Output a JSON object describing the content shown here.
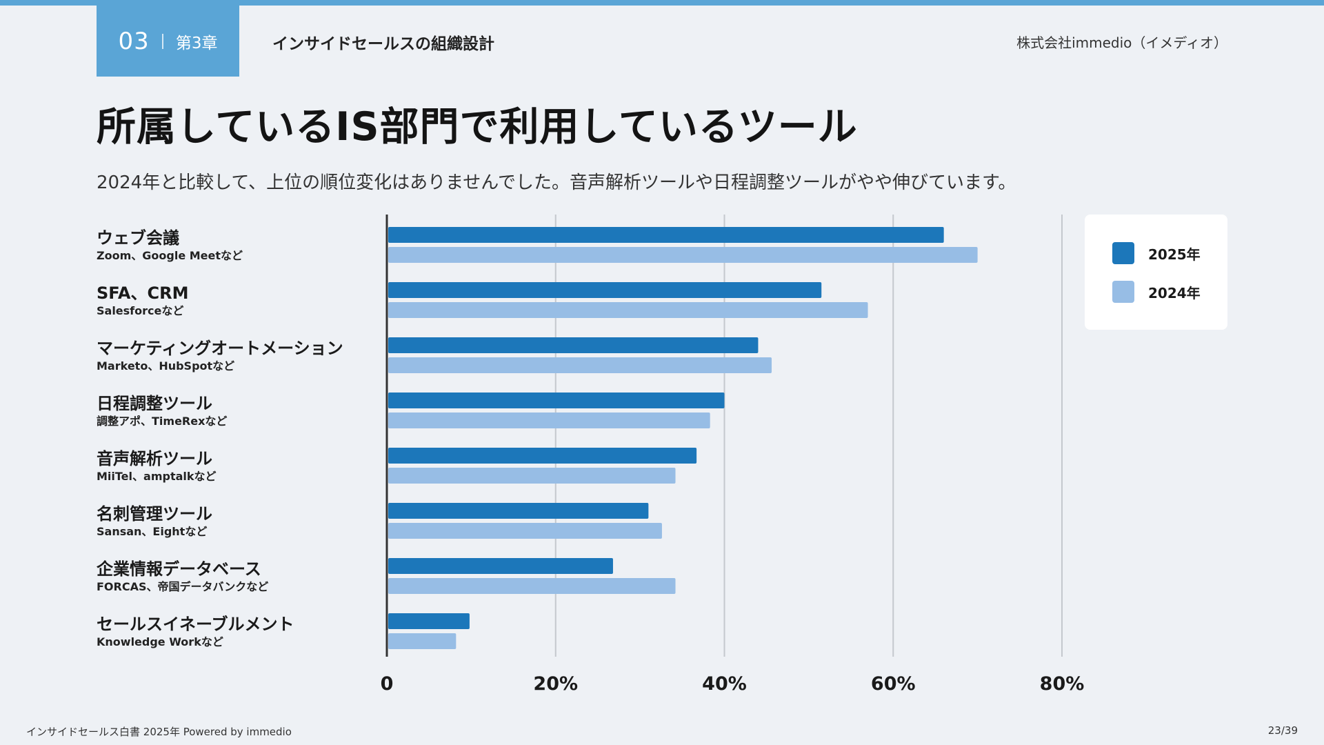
{
  "header": {
    "chapter_number": "03",
    "chapter_label": "第3章",
    "section_title": "インサイドセールスの組織設計",
    "company": "株式会社immedio（イメディオ）"
  },
  "page": {
    "title": "所属しているIS部門で利用しているツール",
    "subtitle": "2024年と比較して、上位の順位変化はありませんでした。音声解析ツールや日程調整ツールがやや伸びています。"
  },
  "chart_data": {
    "type": "bar",
    "orientation": "horizontal",
    "categories": [
      {
        "name": "ウェブ会議",
        "examples": "Zoom、Google Meetなど"
      },
      {
        "name": "SFA、CRM",
        "examples": "Salesforceなど"
      },
      {
        "name": "マーケティングオートメーション",
        "examples": "Marketo、HubSpotなど"
      },
      {
        "name": "日程調整ツール",
        "examples": "調整アポ、TimeRexなど"
      },
      {
        "name": "音声解析ツール",
        "examples": "MiiTel、amptalkなど"
      },
      {
        "name": "名刺管理ツール",
        "examples": "Sansan、Eightなど"
      },
      {
        "name": "企業情報データベース",
        "examples": "FORCAS、帝国データバンクなど"
      },
      {
        "name": "セールスイネーブルメント",
        "examples": "Knowledge Workなど"
      }
    ],
    "series": [
      {
        "name": "2025年",
        "color": "#1c77ba",
        "values": [
          66,
          51.5,
          44,
          40,
          36.7,
          31,
          26.8,
          9.8
        ]
      },
      {
        "name": "2024年",
        "color": "#97bde5",
        "values": [
          70,
          57,
          45.6,
          38.3,
          34.2,
          32.6,
          34.2,
          8.2
        ]
      }
    ],
    "xlim": [
      0,
      80
    ],
    "xticks": [
      0,
      20,
      40,
      60,
      80
    ],
    "tick_labels": [
      "0",
      "20%",
      "40%",
      "60%",
      "80%"
    ],
    "legend_position": "top-right",
    "grid": true
  },
  "footer": {
    "source": "インサイドセールス白書 2025年 Powered by immedio",
    "page": "23/39"
  }
}
